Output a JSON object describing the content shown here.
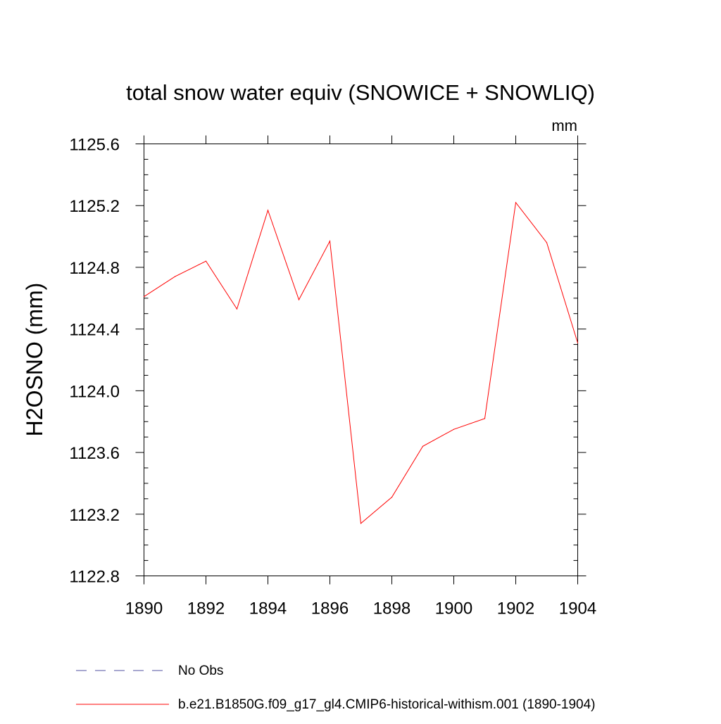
{
  "chart_data": {
    "type": "line",
    "title": "total snow water equiv (SNOWICE + SNOWLIQ)",
    "units": "mm",
    "xlabel": "",
    "ylabel": "H2OSNO  (mm)",
    "xlim": [
      1890,
      1904
    ],
    "ylim": [
      1122.8,
      1125.6
    ],
    "x_ticks": [
      "1890",
      "1892",
      "1894",
      "1896",
      "1898",
      "1900",
      "1902",
      "1904"
    ],
    "y_ticks": [
      "1122.8",
      "1123.2",
      "1123.6",
      "1124.0",
      "1124.4",
      "1124.8",
      "1125.2",
      "1125.6"
    ],
    "grid": false,
    "legend_position": "bottom",
    "colors": {
      "model": "#ff0000",
      "obs": "#5050a0",
      "axes": "#000000"
    },
    "x": [
      1890,
      1891,
      1892,
      1893,
      1894,
      1895,
      1896,
      1897,
      1898,
      1899,
      1900,
      1901,
      1902,
      1903,
      1904
    ],
    "series": [
      {
        "name": "b.e21.B1850G.f09_g17_gl4.CMIP6-historical-withism.001 (1890-1904)",
        "values": [
          1124.61,
          1124.74,
          1124.84,
          1124.53,
          1125.17,
          1124.59,
          1124.97,
          1123.14,
          1123.31,
          1123.64,
          1123.75,
          1123.82,
          1125.22,
          1124.96,
          1124.31
        ]
      }
    ],
    "legend": [
      {
        "label": "No Obs",
        "style": "dashed"
      },
      {
        "label": "b.e21.B1850G.f09_g17_gl4.CMIP6-historical-withism.001 (1890-1904)",
        "style": "solid"
      }
    ]
  }
}
